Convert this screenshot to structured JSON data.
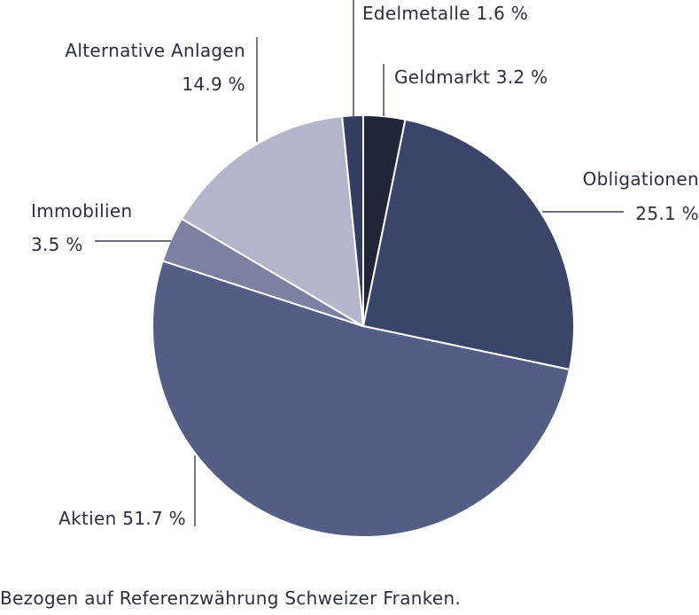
{
  "chart_data": {
    "type": "pie",
    "slices": [
      {
        "key": "geldmarkt",
        "label": "Geldmarkt",
        "value_label": "3.2 %",
        "value": 3.2,
        "color": "#222639"
      },
      {
        "key": "obligationen",
        "label": "Obligationen",
        "value_label": "25.1 %",
        "value": 25.1,
        "color": "#394669"
      },
      {
        "key": "aktien",
        "label": "Aktien",
        "value_label": "51.7 %",
        "value": 51.7,
        "color": "#525e84"
      },
      {
        "key": "immobilien",
        "label": "Immobilien",
        "value_label": "3.5 %",
        "value": 3.5,
        "color": "#7c80a2"
      },
      {
        "key": "alternative",
        "label": "Alternative Anlagen",
        "value_label": "14.9 %",
        "value": 14.9,
        "color": "#b3b5cb"
      },
      {
        "key": "edelmetalle",
        "label": "Edelmetalle",
        "value_label": "1.6 %",
        "value": 1.6,
        "color": "#333e60"
      }
    ],
    "start_angle": 0,
    "direction": "clockwise"
  },
  "footnote": "Bezogen auf Referenzwährung Schweizer Franken."
}
